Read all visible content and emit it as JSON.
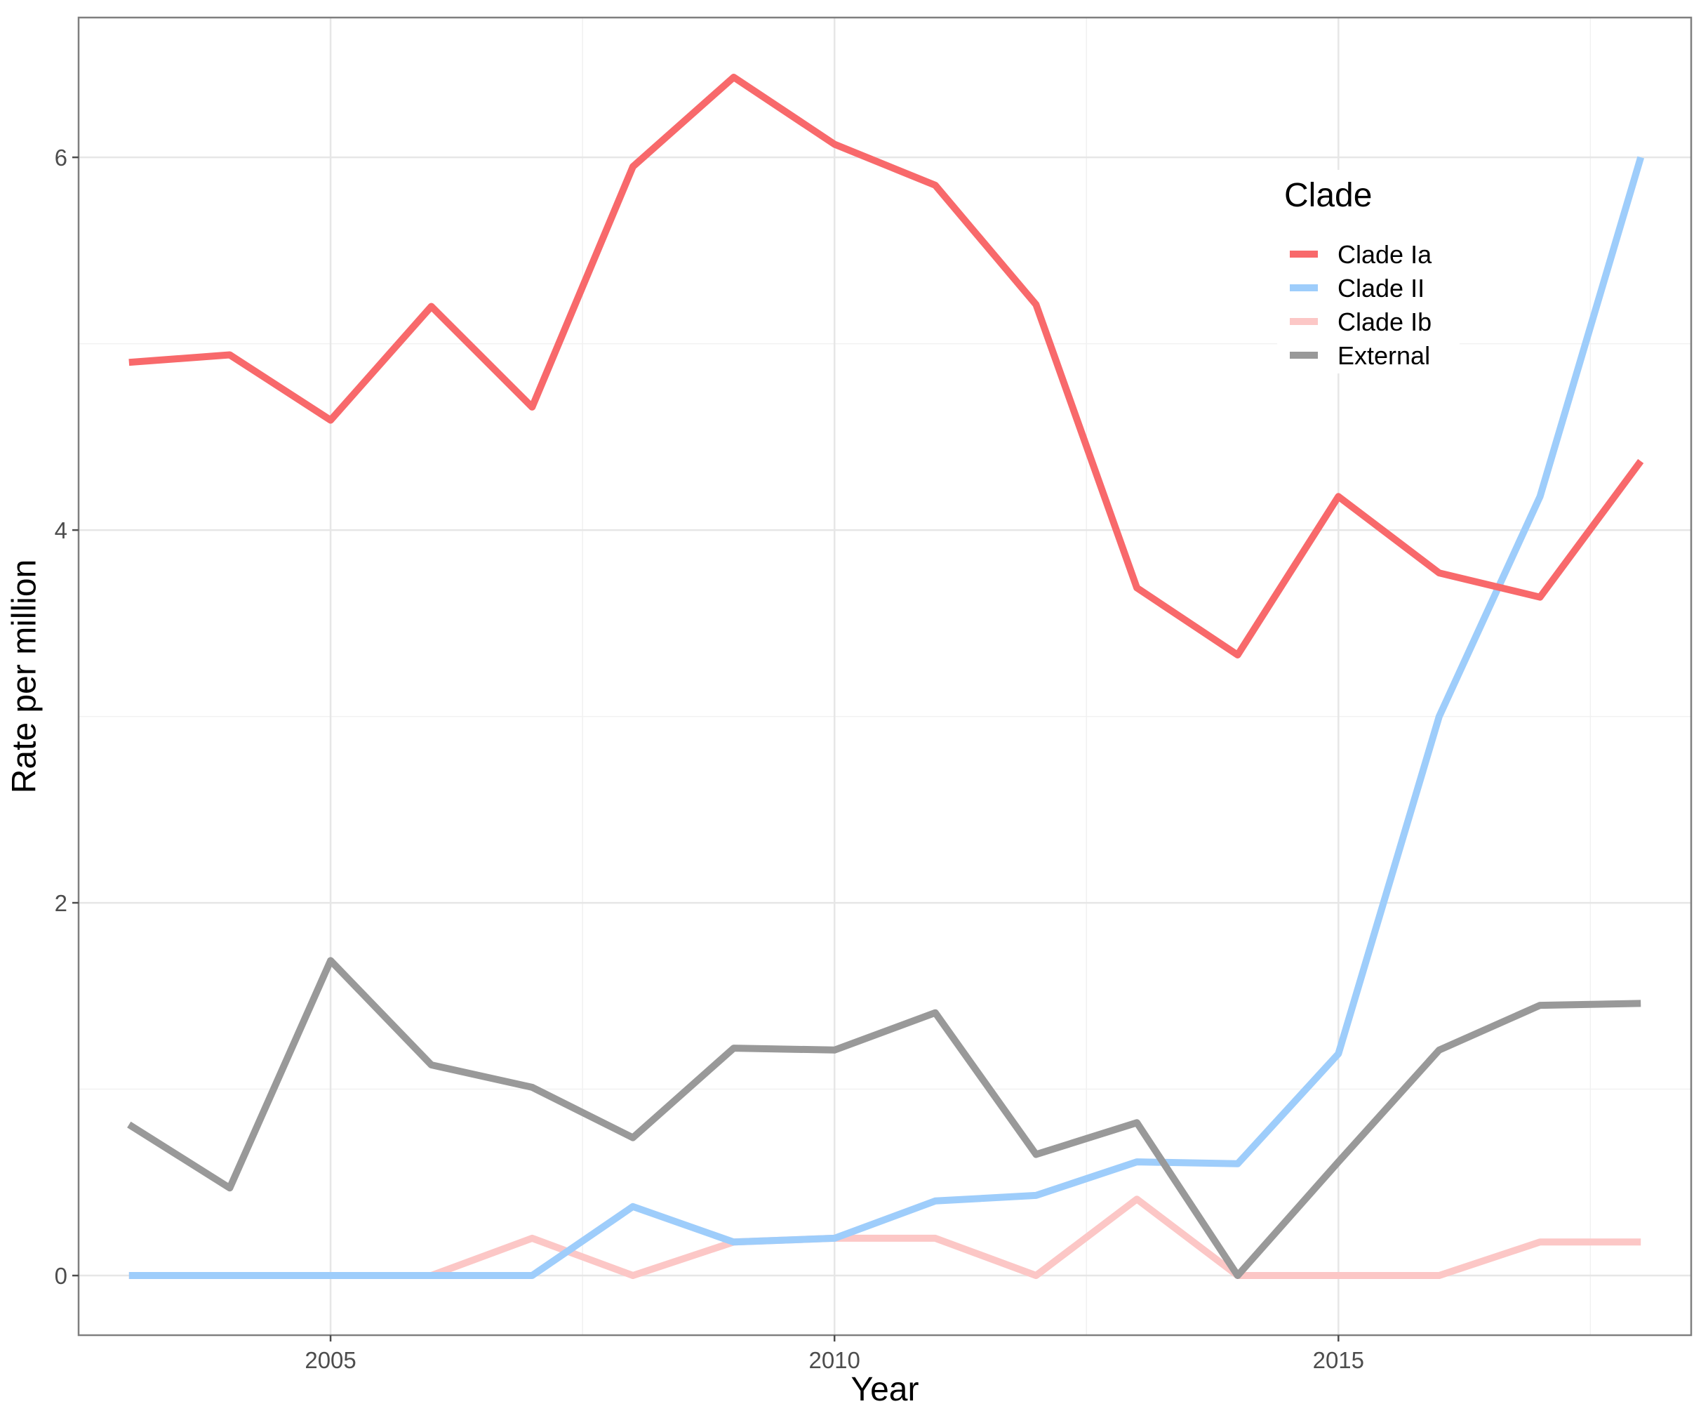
{
  "chart_data": {
    "type": "line",
    "title": "",
    "xlabel": "Year",
    "ylabel": "Rate per million",
    "x": [
      2003,
      2004,
      2005,
      2006,
      2007,
      2008,
      2009,
      2010,
      2011,
      2012,
      2013,
      2014,
      2015,
      2016,
      2017,
      2018
    ],
    "xlim": [
      2002.5,
      2018.5
    ],
    "ylim": [
      -0.32,
      6.75
    ],
    "x_ticks": [
      2005,
      2010,
      2015
    ],
    "x_tick_labels": [
      "2005",
      "2010",
      "2015"
    ],
    "x_minor_ticks": [
      2002.5,
      2007.5,
      2012.5,
      2017.5
    ],
    "y_ticks": [
      0,
      2,
      4,
      6
    ],
    "y_tick_labels": [
      "0",
      "2",
      "4",
      "6"
    ],
    "y_minor_ticks": [
      1,
      3,
      5
    ],
    "grid": true,
    "legend": {
      "title": "Clade",
      "position": "top-right"
    },
    "series": [
      {
        "name": "Clade Ia",
        "color": "#f8696b",
        "values": [
          4.9,
          4.94,
          4.59,
          5.2,
          4.66,
          5.95,
          6.43,
          6.07,
          5.85,
          5.21,
          3.69,
          3.33,
          4.18,
          3.77,
          3.64,
          4.37
        ]
      },
      {
        "name": "Clade II",
        "color": "#9ecdfb",
        "values": [
          0,
          0,
          0,
          0,
          0,
          0.37,
          0.18,
          0.2,
          0.4,
          0.43,
          0.61,
          0.6,
          1.19,
          3.0,
          4.18,
          6.0
        ]
      },
      {
        "name": "Clade Ib",
        "color": "#fcc7c6",
        "values": [
          0,
          0,
          0,
          0,
          0.2,
          0,
          0.18,
          0.2,
          0.2,
          0,
          0.41,
          0,
          0,
          0,
          0.18,
          0.18
        ]
      },
      {
        "name": "External",
        "color": "#999999",
        "values": [
          0.81,
          0.47,
          1.69,
          1.13,
          1.01,
          0.74,
          1.22,
          1.21,
          1.41,
          0.65,
          0.82,
          0,
          0.61,
          1.21,
          1.45,
          1.46
        ]
      }
    ]
  }
}
